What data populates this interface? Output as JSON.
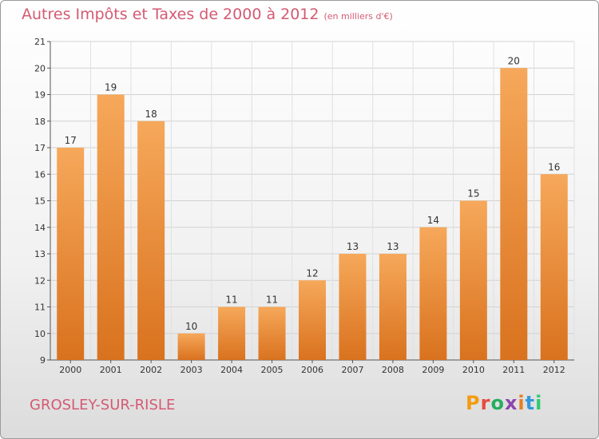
{
  "header": {
    "title": "Autres Impôts et Taxes de 2000 à 2012",
    "subtitle": "(en milliers d'€)"
  },
  "footer": {
    "commune": "GROSLEY-SUR-RISLE",
    "logo": "Proxiti"
  },
  "colors": {
    "title": "#d45a72",
    "bar_top": "#f6a85a",
    "bar_bottom": "#d9721e",
    "logo_letters": [
      "#f39c12",
      "#e74c3c",
      "#27ae60",
      "#8e44ad",
      "#e67e22",
      "#3498db",
      "#2ecc71"
    ]
  },
  "chart_data": {
    "type": "bar",
    "title": "Autres Impôts et Taxes de 2000 à 2012",
    "subtitle": "(en milliers d'€)",
    "categories": [
      "2000",
      "2001",
      "2002",
      "2003",
      "2004",
      "2005",
      "2006",
      "2007",
      "2008",
      "2009",
      "2010",
      "2011",
      "2012"
    ],
    "values": [
      17,
      19,
      18,
      10,
      11,
      11,
      12,
      13,
      13,
      14,
      15,
      20,
      16
    ],
    "ylim": [
      9,
      21
    ],
    "yticks": [
      9,
      10,
      11,
      12,
      13,
      14,
      15,
      16,
      17,
      18,
      19,
      20,
      21
    ],
    "grid": true,
    "data_labels": true
  }
}
